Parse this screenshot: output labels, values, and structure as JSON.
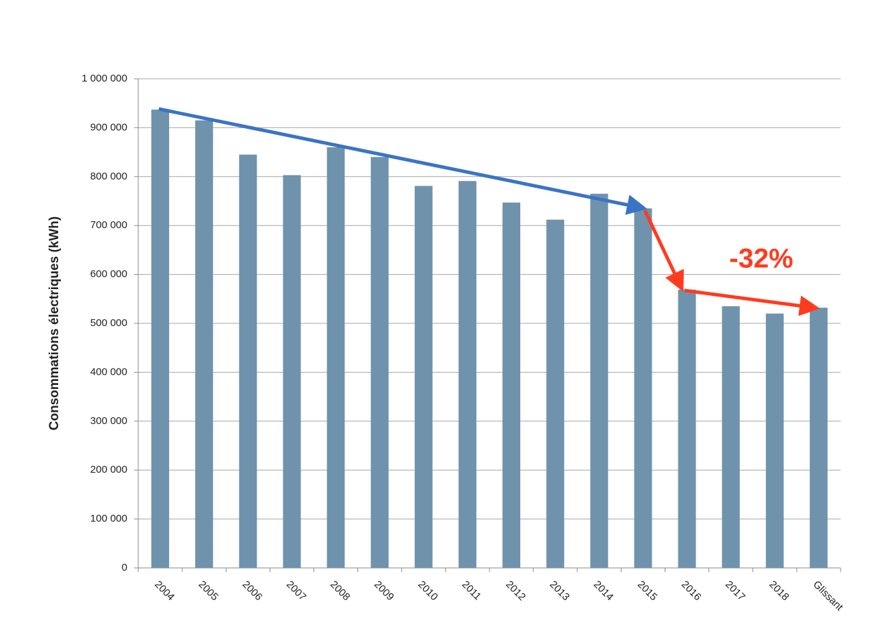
{
  "chart_data": {
    "type": "bar",
    "y_axis_label": "Consommations électriques (kWh)",
    "annotation": "-32%",
    "categories": [
      "2004",
      "2005",
      "2006",
      "2007",
      "2008",
      "2009",
      "2010",
      "2011",
      "2012",
      "2013",
      "2014",
      "2015",
      "2016",
      "2017",
      "2018",
      "Glissant"
    ],
    "values": [
      937000,
      915000,
      845000,
      803000,
      860000,
      840000,
      781000,
      791000,
      747000,
      712000,
      765000,
      735000,
      569000,
      535000,
      520000,
      532000
    ],
    "color": "#6f93ad",
    "ylim": [
      0,
      1000000
    ],
    "yticks": [
      0,
      {
        "value": 100000,
        "label": "100 000"
      },
      {
        "value": 200000,
        "label": "200 000"
      },
      {
        "value": 300000,
        "label": "300 000"
      },
      {
        "value": 400000,
        "label": "400 000"
      },
      {
        "value": 500000,
        "label": "500 000"
      },
      {
        "value": 600000,
        "label": "600 000"
      },
      {
        "value": 700000,
        "label": "700 000"
      },
      {
        "value": 800000,
        "label": "800 000"
      },
      {
        "value": 900000,
        "label": "900 000"
      },
      {
        "value": 1000000,
        "label": "1 000 000"
      }
    ],
    "grid": true
  }
}
